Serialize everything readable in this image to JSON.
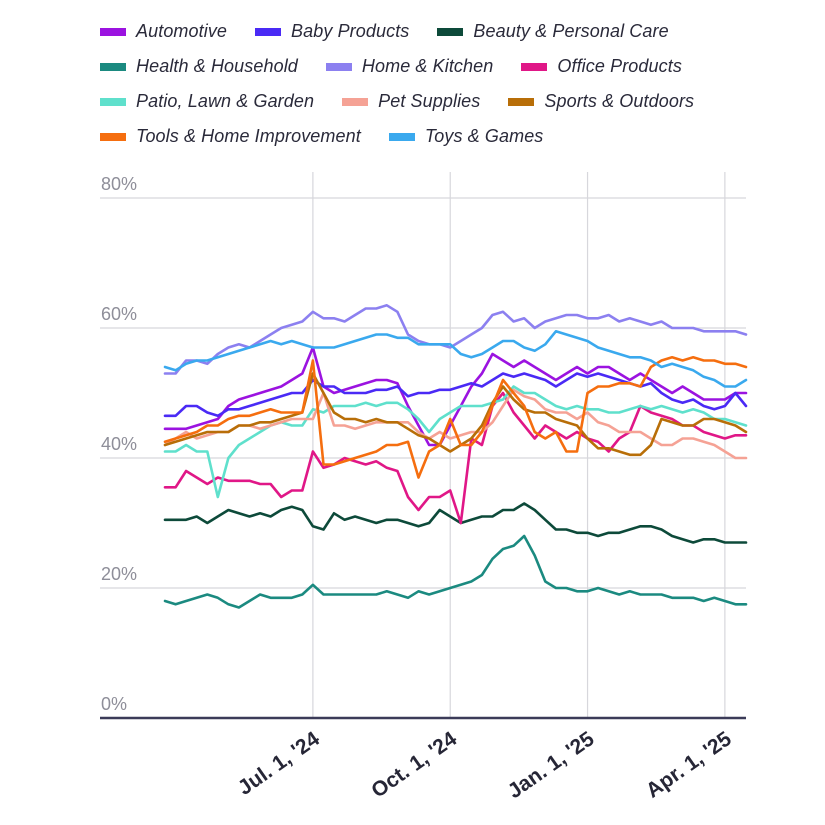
{
  "chart_data": {
    "type": "line",
    "title": "",
    "xlabel": "",
    "ylabel": "",
    "y_unit": "%",
    "ylim": [
      0,
      80
    ],
    "y_ticks": [
      "0%",
      "20%",
      "40%",
      "60%",
      "80%"
    ],
    "x_ticks": [
      "Jul. 1, '24",
      "Oct. 1, '24",
      "Jan. 1, '25",
      "Apr. 1, '25"
    ],
    "x_tick_positions": [
      14,
      27,
      40,
      53
    ],
    "x_range": [
      0,
      55
    ],
    "grid": true,
    "legend_position": "top",
    "series": [
      {
        "name": "Automotive",
        "color": "#9b13e0",
        "values": [
          44.5,
          44.5,
          44.5,
          45,
          45.5,
          46,
          48,
          49,
          49.5,
          50,
          50.5,
          51,
          52,
          53,
          57,
          51,
          50,
          50.5,
          51,
          51.5,
          52,
          52,
          51.5,
          48,
          45,
          42,
          42,
          45,
          48,
          51,
          53,
          56,
          55,
          54,
          55,
          54,
          53,
          52,
          53,
          54,
          53,
          54,
          54,
          53,
          52,
          53,
          52,
          51,
          50,
          51,
          50,
          49,
          49,
          49,
          50,
          50
        ]
      },
      {
        "name": "Baby Products",
        "color": "#4a2af5",
        "values": [
          46.5,
          46.5,
          48,
          48,
          47,
          46.5,
          47.5,
          47.5,
          48,
          48.5,
          49,
          49.5,
          50,
          50,
          52,
          51,
          51,
          50,
          50,
          50,
          50.5,
          50.5,
          51,
          49.5,
          50,
          50,
          50.5,
          50.5,
          51,
          51.5,
          51,
          52,
          53,
          52.5,
          53,
          52.5,
          52,
          51,
          52,
          53,
          52.5,
          53,
          52.5,
          52,
          51.5,
          51,
          51.5,
          50,
          49,
          48.5,
          49,
          48,
          47.5,
          48,
          50,
          48
        ]
      },
      {
        "name": "Beauty & Personal Care",
        "color": "#0d4a3a",
        "values": [
          30.5,
          30.5,
          30.5,
          31,
          30,
          31,
          32,
          31.5,
          31,
          31.5,
          31,
          32,
          32.5,
          32,
          29.5,
          29,
          31.5,
          30.5,
          31,
          30.5,
          30,
          30.5,
          30.5,
          30,
          29.5,
          30,
          32,
          31,
          30,
          30.5,
          31,
          31,
          32,
          32,
          33,
          32,
          30.5,
          29,
          29,
          28.5,
          28.5,
          28,
          28.5,
          28.5,
          29,
          29.5,
          29.5,
          29,
          28,
          27.5,
          27,
          27.5,
          27.5,
          27,
          27,
          27
        ]
      },
      {
        "name": "Health & Household",
        "color": "#1b8a80",
        "values": [
          18,
          17.5,
          18,
          18.5,
          19,
          18.5,
          17.5,
          17,
          18,
          19,
          18.5,
          18.5,
          18.5,
          19,
          20.5,
          19,
          19,
          19,
          19,
          19,
          19,
          19.5,
          19,
          18.5,
          19.5,
          19,
          19.5,
          20,
          20.5,
          21,
          22,
          24.5,
          26,
          26.5,
          28,
          25,
          21,
          20,
          20,
          19.5,
          19.5,
          20,
          19.5,
          19,
          19.5,
          19,
          19,
          19,
          18.5,
          18.5,
          18.5,
          18,
          18.5,
          18,
          17.5,
          17.5
        ]
      },
      {
        "name": "Home & Kitchen",
        "color": "#8c80f0",
        "values": [
          53,
          53,
          55,
          55,
          54.5,
          56,
          57,
          57.5,
          57,
          58,
          59,
          60,
          60.5,
          61,
          62.5,
          61.5,
          61.5,
          61,
          62,
          63,
          63,
          63.5,
          62.5,
          59,
          58,
          57.5,
          57.5,
          57,
          58,
          59,
          60,
          62,
          62.5,
          61,
          61.5,
          60,
          61,
          61.5,
          62,
          62,
          61.5,
          61.5,
          62,
          61,
          61.5,
          61,
          60.5,
          61,
          60,
          60,
          60,
          59.5,
          59.5,
          59.5,
          59.5,
          59
        ]
      },
      {
        "name": "Office Products",
        "color": "#e01787",
        "values": [
          35.5,
          35.5,
          38,
          37,
          36,
          37,
          36.5,
          36.5,
          36.5,
          36,
          36,
          34,
          35,
          35,
          41,
          38.5,
          39,
          40,
          39.5,
          39,
          39.5,
          38.5,
          38,
          34,
          32,
          34,
          34,
          35,
          30,
          43,
          42,
          48,
          50,
          47,
          45,
          43,
          45,
          44,
          43,
          44,
          43,
          42.5,
          41,
          43,
          44,
          48,
          47,
          46.5,
          46,
          45,
          45,
          44,
          43.5,
          43,
          43.5,
          43.5
        ]
      },
      {
        "name": "Patio, Lawn & Garden",
        "color": "#5fe0cc",
        "values": [
          41,
          41,
          42,
          41,
          41,
          34,
          40,
          42,
          43,
          44,
          45,
          45.5,
          45,
          45,
          47.5,
          47,
          48,
          48,
          48,
          48.5,
          48,
          48.5,
          48.5,
          47.5,
          46,
          44,
          46,
          47,
          48,
          48,
          48,
          48.5,
          49,
          51,
          50,
          50,
          49,
          48,
          47.5,
          48,
          47.5,
          47.5,
          47,
          47,
          47.5,
          48,
          47.5,
          48,
          47.5,
          47,
          47.5,
          47,
          46,
          46,
          45.5,
          45
        ]
      },
      {
        "name": "Pet Supplies",
        "color": "#f5a295",
        "values": [
          42,
          43,
          44,
          43,
          43.5,
          44,
          44,
          45,
          45,
          44.5,
          45,
          45.5,
          46,
          46,
          46,
          50,
          45,
          45,
          44.5,
          45,
          45.5,
          45.5,
          45.5,
          45.5,
          44,
          43,
          44,
          43,
          43.5,
          44,
          44,
          45.5,
          48,
          50.5,
          49.5,
          49,
          47.5,
          47,
          47,
          46,
          47,
          45.5,
          45,
          44,
          44,
          44,
          43,
          42,
          42,
          43,
          43,
          42.5,
          42,
          41,
          40,
          40
        ]
      },
      {
        "name": "Sports & Outdoors",
        "color": "#b86e08",
        "values": [
          42,
          42.5,
          43,
          43.5,
          44,
          44,
          44,
          45,
          45,
          45.5,
          45.5,
          46,
          46.5,
          47,
          53,
          50,
          47,
          46,
          46,
          45.5,
          46,
          45.5,
          45.5,
          44.5,
          43.5,
          43,
          42,
          41,
          42,
          43,
          45,
          48.5,
          51,
          49,
          47.5,
          47,
          47,
          46,
          45.5,
          45,
          43,
          41.5,
          41.5,
          41,
          40.5,
          40.5,
          42,
          46,
          45.5,
          45,
          45,
          46,
          46,
          45.5,
          45,
          44
        ]
      },
      {
        "name": "Tools & Home Improvement",
        "color": "#f56e0f",
        "values": [
          42.5,
          43,
          43.5,
          44,
          45,
          45,
          46,
          46.5,
          46.5,
          47,
          47.5,
          47,
          47,
          47,
          55,
          39,
          39,
          39.5,
          40,
          40.5,
          41,
          42,
          42,
          42.5,
          37,
          41,
          42,
          46,
          42,
          42,
          44,
          48,
          52,
          50,
          48,
          44,
          43,
          44,
          41,
          41,
          50,
          51,
          51,
          51.5,
          51.5,
          51,
          54,
          55,
          55.5,
          55,
          55.5,
          55,
          55,
          54.5,
          54.5,
          54
        ]
      },
      {
        "name": "Toys & Games",
        "color": "#3aa9ee",
        "values": [
          54,
          53.5,
          54.5,
          55,
          55,
          55.5,
          56,
          56.5,
          57,
          57.5,
          58,
          57.5,
          58,
          57.5,
          57,
          57,
          57,
          57.5,
          58,
          58.5,
          59,
          59,
          58.5,
          58.5,
          57.5,
          57.5,
          57.5,
          57.5,
          56,
          55.5,
          56,
          57,
          58,
          58,
          57,
          56.5,
          57.5,
          59.5,
          59,
          58.5,
          58,
          57,
          56.5,
          56,
          55.5,
          55.5,
          55,
          54,
          54.5,
          54,
          53.5,
          52.5,
          52,
          51,
          51,
          52
        ]
      }
    ]
  }
}
